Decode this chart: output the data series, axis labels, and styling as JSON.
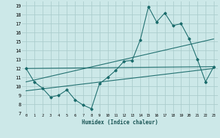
{
  "xlabel": "Humidex (Indice chaleur)",
  "bg_color": "#cce8e8",
  "grid_color": "#aacccc",
  "line_color": "#1a6b6b",
  "xlim": [
    -0.5,
    23.5
  ],
  "ylim": [
    7,
    19.5
  ],
  "xticks": [
    0,
    1,
    2,
    3,
    4,
    5,
    6,
    7,
    8,
    9,
    10,
    11,
    12,
    13,
    14,
    15,
    16,
    17,
    18,
    19,
    20,
    21,
    22,
    23
  ],
  "yticks": [
    7,
    8,
    9,
    10,
    11,
    12,
    13,
    14,
    15,
    16,
    17,
    18,
    19
  ],
  "series1_x": [
    0,
    1,
    2,
    3,
    4,
    5,
    6,
    7,
    8,
    9,
    10,
    11,
    12,
    13,
    14,
    15,
    16,
    17,
    18,
    19,
    20,
    21,
    22,
    23
  ],
  "series1_y": [
    12.0,
    10.5,
    9.8,
    8.8,
    9.0,
    9.6,
    8.5,
    7.9,
    7.5,
    10.3,
    11.0,
    11.8,
    12.8,
    12.9,
    15.2,
    18.9,
    17.2,
    18.2,
    16.8,
    17.0,
    15.3,
    13.0,
    10.5,
    12.2
  ],
  "trend1_x": [
    0,
    23
  ],
  "trend1_y": [
    12.0,
    12.2
  ],
  "trend2_x": [
    0,
    23
  ],
  "trend2_y": [
    10.5,
    15.3
  ],
  "trend3_x": [
    0,
    23
  ],
  "trend3_y": [
    9.5,
    12.0
  ]
}
